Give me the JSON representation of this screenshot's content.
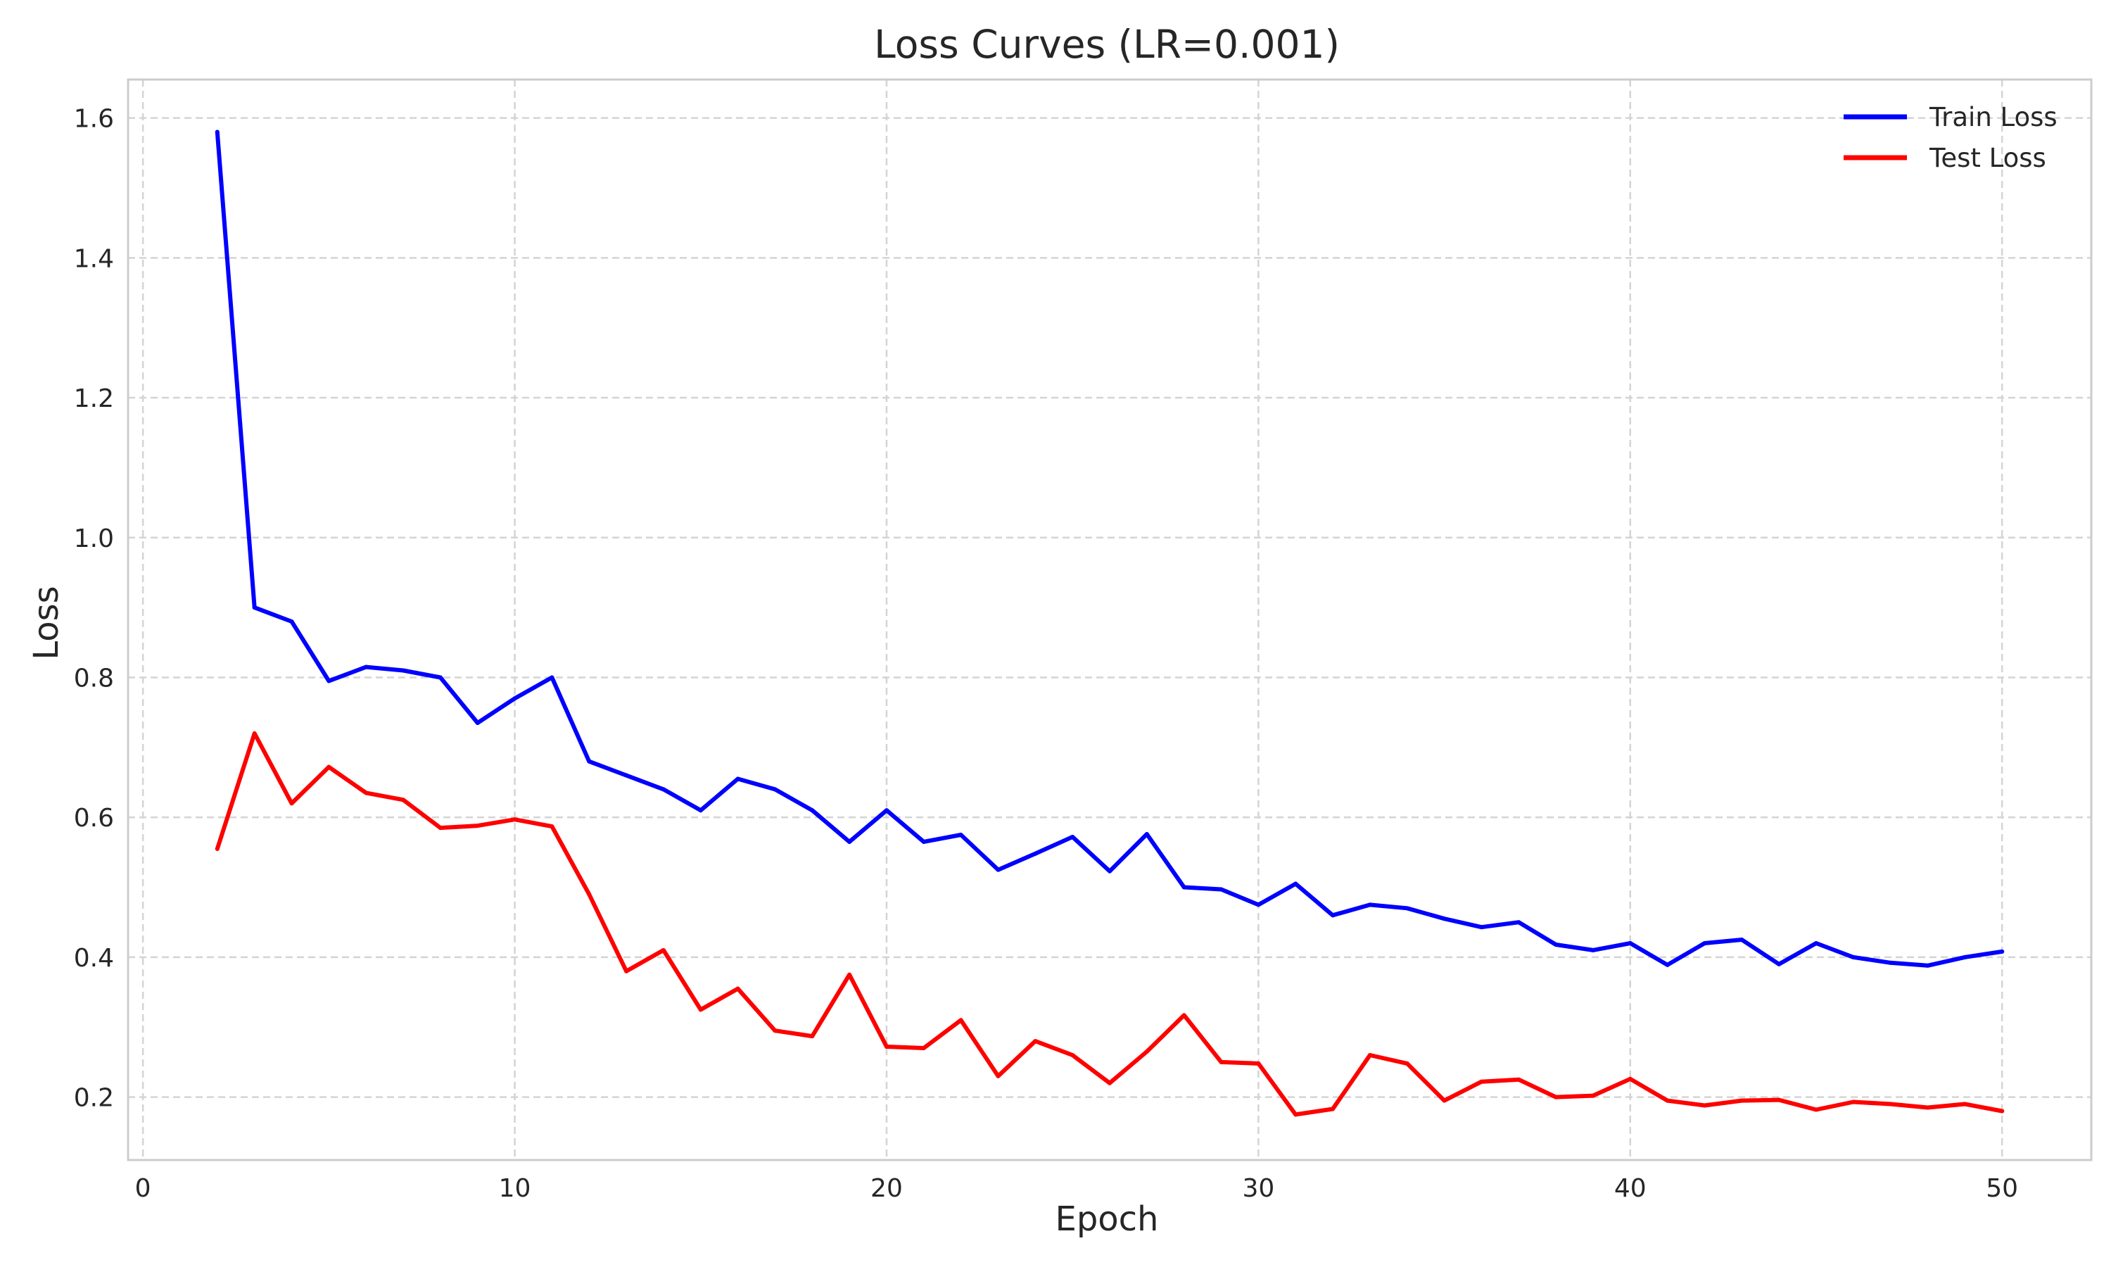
{
  "chart_data": {
    "type": "line",
    "title": "Loss Curves (LR=0.001)",
    "xlabel": "Epoch",
    "ylabel": "Loss",
    "xlim": [
      -0.4,
      52.4
    ],
    "ylim": [
      0.11,
      1.655
    ],
    "xticks": [
      0,
      10,
      20,
      30,
      40,
      50
    ],
    "yticks": [
      0.2,
      0.4,
      0.6,
      0.8,
      1.0,
      1.2,
      1.4,
      1.6
    ],
    "xtick_labels": [
      "0",
      "10",
      "20",
      "30",
      "40",
      "50"
    ],
    "ytick_labels": [
      "0.2",
      "0.4",
      "0.6",
      "0.8",
      "1.0",
      "1.2",
      "1.4",
      "1.6"
    ],
    "grid": true,
    "legend_position": "top-right",
    "x": [
      2,
      3,
      4,
      5,
      6,
      7,
      8,
      9,
      10,
      11,
      12,
      13,
      14,
      15,
      16,
      17,
      18,
      19,
      20,
      21,
      22,
      23,
      24,
      25,
      26,
      27,
      28,
      29,
      30,
      31,
      32,
      33,
      34,
      35,
      36,
      37,
      38,
      39,
      40,
      41,
      42,
      43,
      44,
      45,
      46,
      47,
      48,
      49,
      50
    ],
    "series": [
      {
        "name": "Train Loss",
        "color": "#0000ff",
        "values": [
          1.58,
          0.9,
          0.88,
          0.795,
          0.815,
          0.81,
          0.8,
          0.735,
          0.77,
          0.8,
          0.68,
          0.66,
          0.64,
          0.61,
          0.655,
          0.64,
          0.61,
          0.565,
          0.61,
          0.565,
          0.575,
          0.525,
          0.548,
          0.572,
          0.523,
          0.576,
          0.5,
          0.497,
          0.475,
          0.505,
          0.46,
          0.475,
          0.47,
          0.455,
          0.443,
          0.45,
          0.418,
          0.41,
          0.42,
          0.389,
          0.42,
          0.425,
          0.39,
          0.42,
          0.4,
          0.392,
          0.388,
          0.4,
          0.408
        ]
      },
      {
        "name": "Test Loss",
        "color": "#ff0000",
        "values": [
          0.555,
          0.72,
          0.62,
          0.672,
          0.635,
          0.625,
          0.585,
          0.588,
          0.597,
          0.587,
          0.49,
          0.38,
          0.41,
          0.325,
          0.355,
          0.295,
          0.287,
          0.375,
          0.272,
          0.27,
          0.31,
          0.23,
          0.28,
          0.26,
          0.22,
          0.265,
          0.317,
          0.25,
          0.248,
          0.175,
          0.183,
          0.26,
          0.248,
          0.195,
          0.222,
          0.225,
          0.2,
          0.202,
          0.226,
          0.195,
          0.188,
          0.195,
          0.196,
          0.182,
          0.193,
          0.19,
          0.185,
          0.19,
          0.18
        ]
      }
    ]
  }
}
